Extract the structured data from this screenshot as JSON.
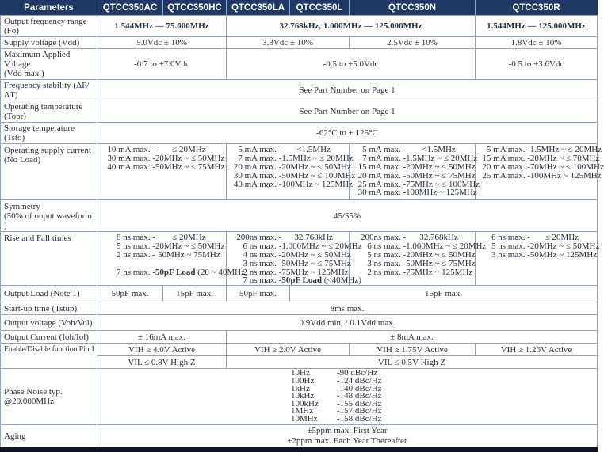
{
  "columns": [
    "Parameters",
    "QTCC350AC",
    "QTCC350HC",
    "QTCC350LA",
    "QTCC350L",
    "QTCC350N",
    "QTCC350R"
  ],
  "rows": {
    "fo": {
      "label": "Output frequency range (Fo)",
      "ac_hc": "1.544MHz — 75.000MHz",
      "la_l_n": "32.768kHz, 1.000MHz — 125.000MHz",
      "r": "1.544MHz — 125.000MHz"
    },
    "vdd": {
      "label": "Supply voltage (Vdd)",
      "ac_hc": "5.0Vdc ± 10%",
      "la_l": "3.3Vdc ± 10%",
      "n": "2.5Vdc ± 10%",
      "r": "1.8Vdc ± 10%"
    },
    "vdd_max": {
      "label": "Maximum Applied Voltage\n(Vdd max.)",
      "ac_hc": "-0.7 to +7.0Vdc",
      "la_l_n": "-0.5 to +5.0Vdc",
      "r": "-0.5 to +3.6Vdc"
    },
    "stability": {
      "label": "Frequency stability (ΔF/ΔT)",
      "all": "See Part Number on Page 1"
    },
    "topr": {
      "label": "Operating temperature (Topr)",
      "all": "See Part Number on Page 1"
    },
    "tsto": {
      "label": "Storage temperature (Tsto)",
      "all": "-62°C to + 125°C"
    },
    "current": {
      "label": "Operating supply current\n(No Load)",
      "ac_hc": [
        [
          "10 mA max. -",
          "≤ 20MHz"
        ],
        [
          "30 mA max. -",
          "20MHz ~ ≤ 50MHz"
        ],
        [
          "40 mA max. -",
          "50MHz ~ ≤ 75MHz"
        ]
      ],
      "la_l": [
        [
          "5 mA max. -",
          "<1.5MHz"
        ],
        [
          "7 mA max. -",
          "1.5MHz ~ ≤ 20MHz"
        ],
        [
          "20 mA max. -",
          "20MHz ~ ≤ 50MHz"
        ],
        [
          "30 mA max. -",
          "50MHz ~ ≤ 100MHz"
        ],
        [
          "40 mA max. -",
          "100MHz ~ 125MHz"
        ]
      ],
      "n": [
        [
          "5 mA max. -",
          "<1.5MHz"
        ],
        [
          "7 mA max. -",
          "1.5MHz ~ ≤ 20MHz"
        ],
        [
          "15 mA max. -",
          "20MHz ~ ≤ 50MHz"
        ],
        [
          "20 mA max. -",
          "50MHz ~ ≤ 75MHz"
        ],
        [
          "25 mA max. -",
          "75MHz ~ ≤ 100MHz"
        ],
        [
          "30 mA max. -",
          "100MHz ~ 125MHz"
        ]
      ],
      "r": [
        [
          "5 mA max. -",
          "1.5MHz ~ ≤ 20MHz"
        ],
        [
          "15 mA max. -",
          "20MHz ~ ≤ 70MHz"
        ],
        [
          "20 mA max. -",
          "70MHz ~ ≤ 100MHz"
        ],
        [
          "25 mA max. -",
          "100MHz ~ 125MHz"
        ]
      ]
    },
    "symmetry": {
      "label": "Symmetry\n(50% of ouput waveform )",
      "all": "45/55%"
    },
    "rise_fall": {
      "label": "Rise and Fall times",
      "ac_hc": [
        [
          "8 ns max. -",
          "≤ 20MHz"
        ],
        [
          "5 ns max. -",
          "20MHz ~ ≤ 50MHz"
        ],
        [
          "2 ns max. -",
          "50MHz ~  75MHz"
        ],
        [],
        [
          "7 ns max. -",
          "50pF Load",
          " (20 ~ 40MHz)"
        ]
      ],
      "la_l": [
        [
          "200ns max. -",
          "32.768kHz"
        ],
        [
          "6 ns max. -",
          "1.000MHz ~ ≤ 20MHz"
        ],
        [
          "4 ns max. -",
          "20MHz ~ ≤ 50MHz"
        ],
        [
          "3 ns max. -",
          "50MHz ~ ≤ 75MHz"
        ],
        [
          "2 ns max. -",
          "75MHz ~ 125MHz"
        ],
        [
          "7 ns max. -",
          "50pF Load",
          " (<40MHz)"
        ]
      ],
      "n": [
        [
          "200ns max. -",
          "32.768kHz"
        ],
        [
          "6 ns max. -",
          "1.000MHz ~ ≤ 20MHz"
        ],
        [
          "5 ns max. -",
          "20MHz ~ ≤ 50MHz"
        ],
        [
          "3 ns max. -",
          "50MHz ~ ≤ 75MHz"
        ],
        [
          "2 ns max. -",
          "75MHz ~ 125MHz"
        ]
      ],
      "r": [
        [
          "6 ns max. -",
          "≤ 20MHz"
        ],
        [
          "5 ns max. -",
          "20MHz ~ ≤ 50MHz"
        ],
        [
          "3 ns max. -",
          "50MHz ~  125MHz"
        ]
      ]
    },
    "load": {
      "label": "Output Load (Note 1)",
      "ac": "50pF max.",
      "hc": "15pF max.",
      "la": "50pF max.",
      "l_n_r": "15pF max."
    },
    "startup": {
      "label": "Start-up time (Tstup)",
      "all": "8ms max."
    },
    "vout": {
      "label": "Output voltage (Voh/Vol)",
      "all": "0.9Vdd min. / 0.1Vdd max."
    },
    "iout": {
      "label": "Output Current (Ioh/Iol)",
      "ac_hc": "± 16mA max.",
      "la_l_n_r": "± 8mA max."
    },
    "enable": {
      "label": "Enable/Disable function Pin 1",
      "vih": {
        "ac_hc": "VIH ≥ 4.0V Active",
        "la_l": "VIH ≥ 2.0V Active",
        "n": "VIH ≥ 1.75V Active",
        "r": "VIH ≥ 1.26V Active"
      },
      "vil": {
        "ac_hc": "VIL ≤ 0.8V High Z",
        "la_l_n_r": "VIL ≤ 0.5V High Z"
      }
    },
    "phase_noise": {
      "label": "Phase Noise typ.\n@20.000MHz",
      "entries": [
        [
          "10Hz",
          "-90 dBc/Hz"
        ],
        [
          "100Hz",
          "-124 dBc/Hz"
        ],
        [
          "1kHz",
          "-140 dBc/Hz"
        ],
        [
          "10kHz",
          "-148 dBc/Hz"
        ],
        [
          "100kHz",
          "-155 dBc/Hz"
        ],
        [
          "1MHz",
          "-157 dBc/Hz"
        ],
        [
          "10MHz",
          "-158 dBc/Hz"
        ]
      ]
    },
    "aging": {
      "label": "Aging",
      "line1": "±5ppm max. First Year",
      "line2": "±2ppm max. Each Year Thereafter"
    }
  },
  "colors": {
    "header_bg": "#1f3864",
    "grid_line": "#96a0c0",
    "outer_frame": "#24356b",
    "bottom_bar": "#0d1426",
    "header_text": "#ffffff",
    "body_text": "#2b2f3a"
  }
}
